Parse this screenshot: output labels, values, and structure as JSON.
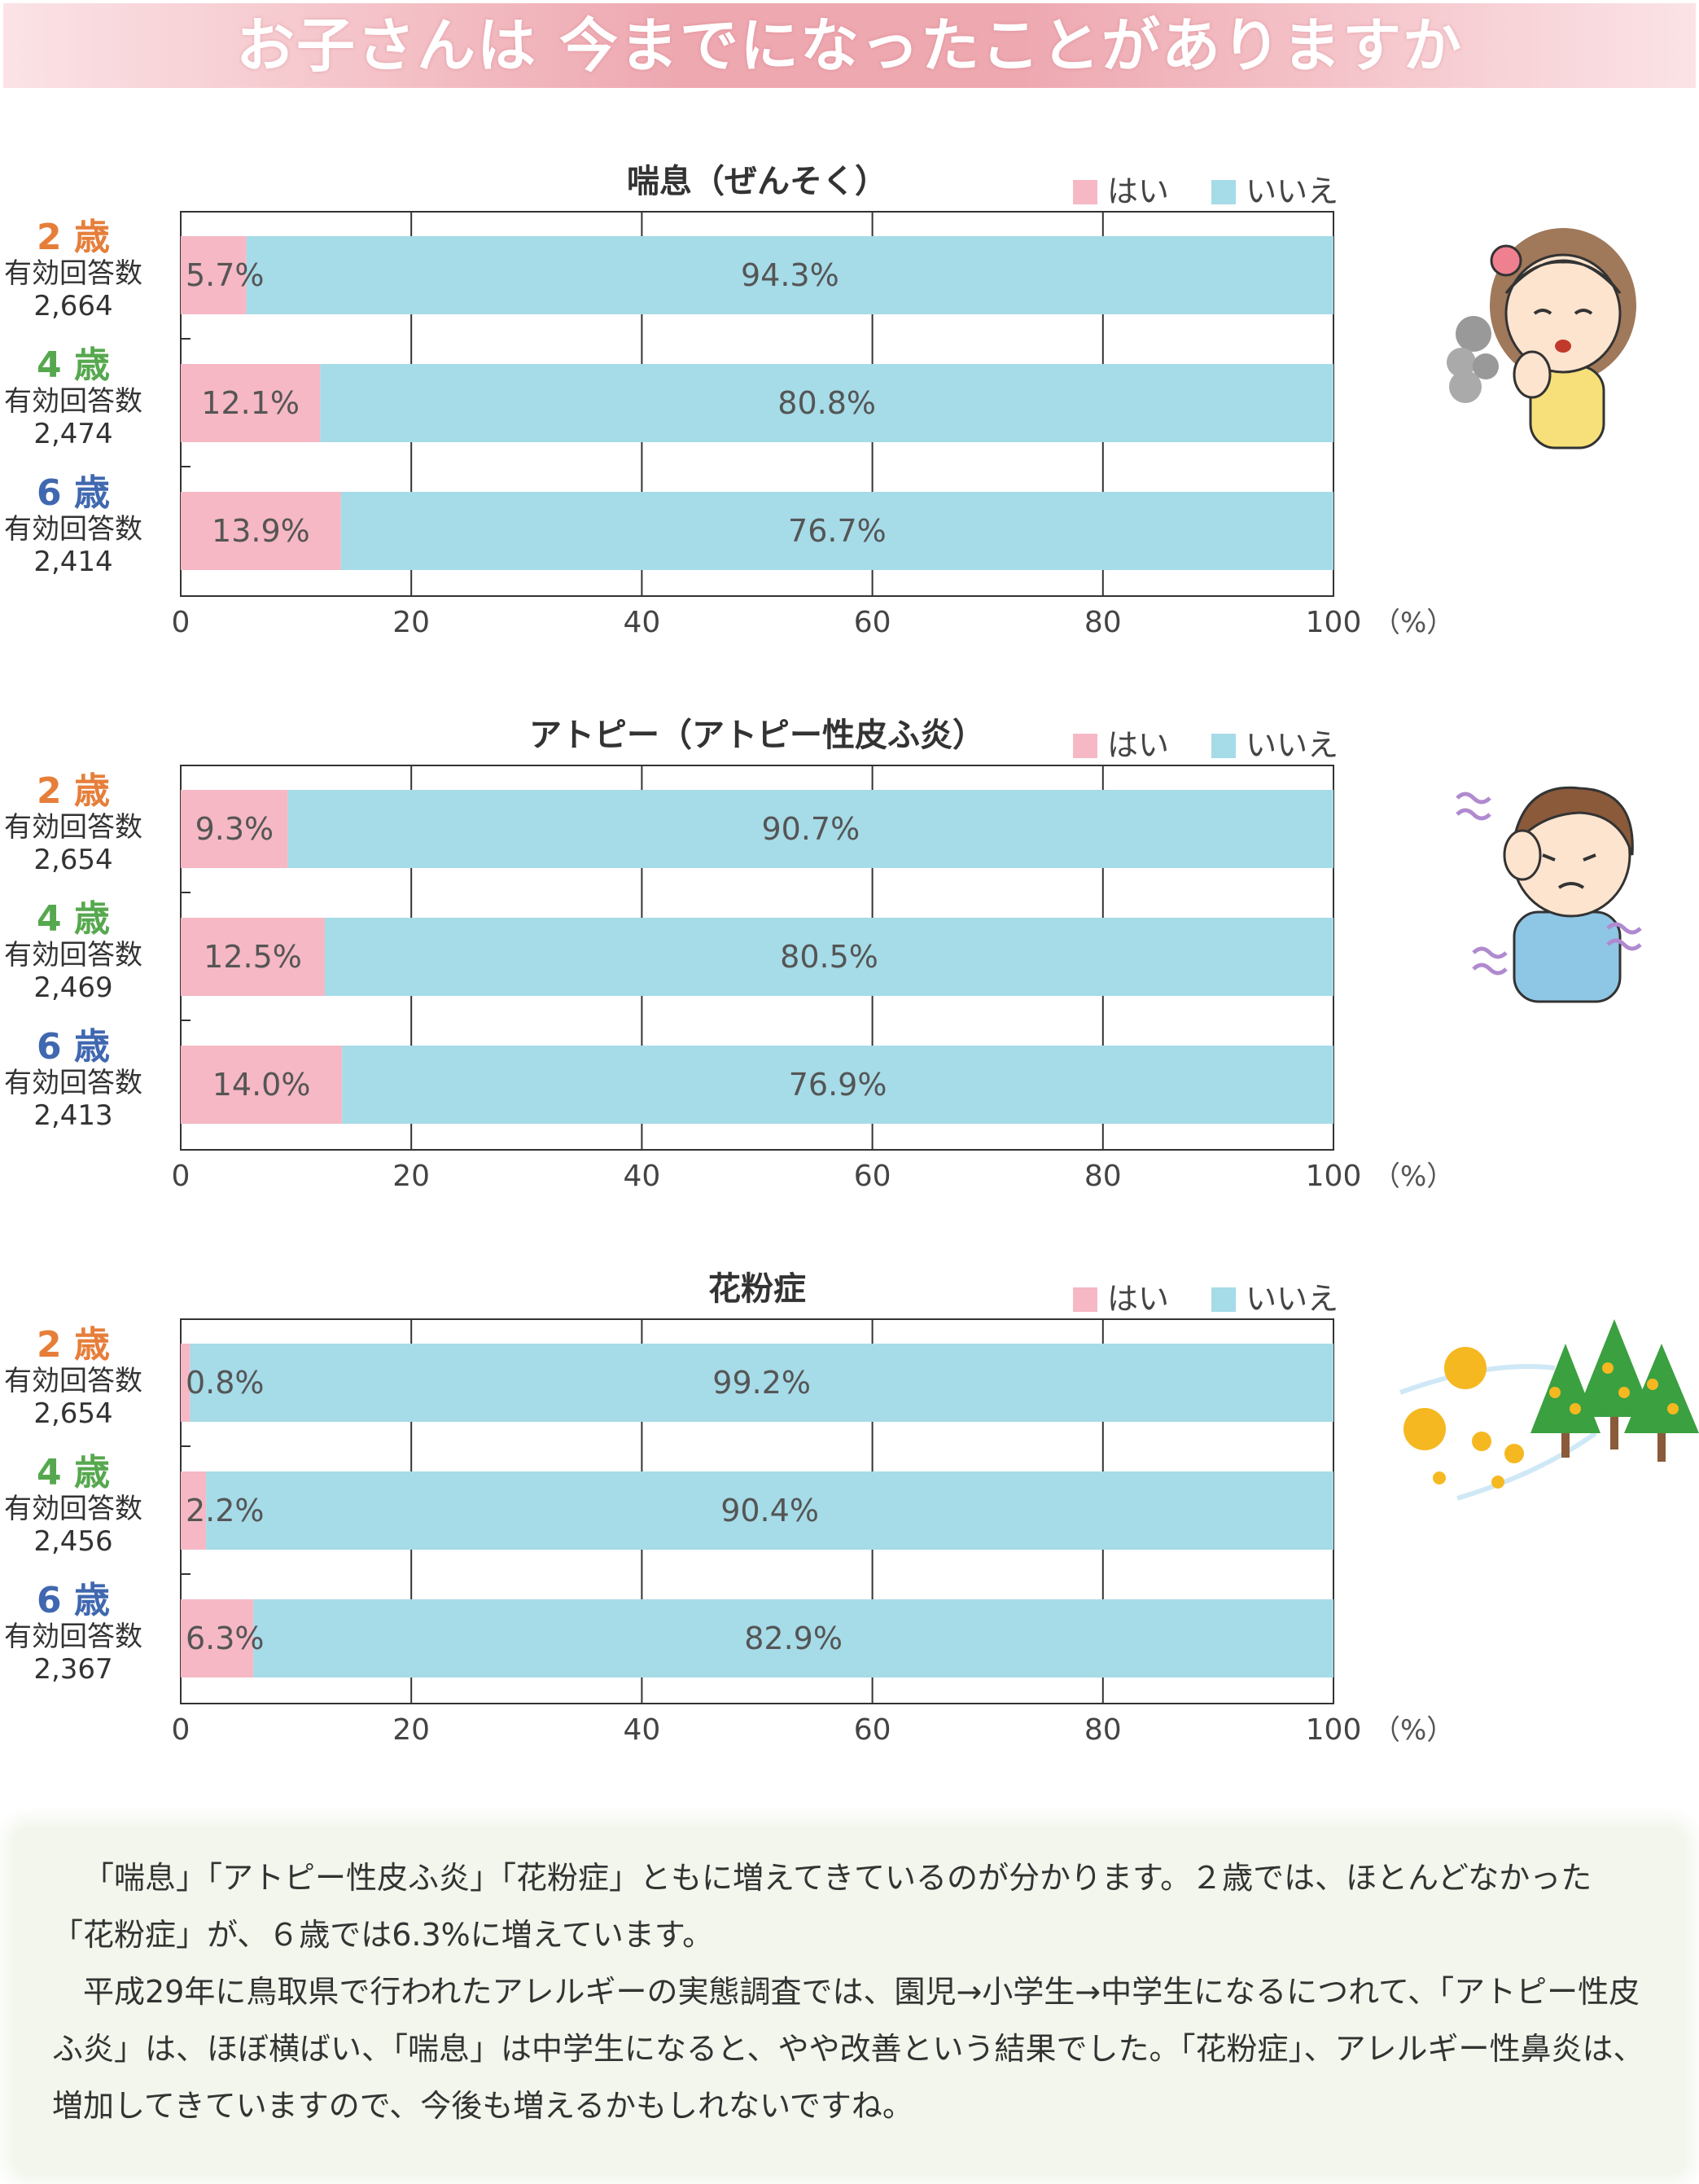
{
  "banner": {
    "title": "お子さんは 今までになったことがありますか"
  },
  "legend": {
    "yes": "はい",
    "no": "いいえ"
  },
  "colors": {
    "yes": "#f5b8c4",
    "no": "#a6dbe8",
    "age2": "#e67e3a",
    "age4": "#56a84e",
    "age6": "#4068b0"
  },
  "respondents_label": "有効回答数",
  "chart_data": [
    {
      "type": "bar",
      "stacked": true,
      "orientation": "horizontal",
      "title": "喘息（ぜんそく）",
      "categories": [
        "2 歳",
        "4 歳",
        "6 歳"
      ],
      "respondents": [
        "2,664",
        "2,474",
        "2,414"
      ],
      "series": [
        {
          "name": "はい",
          "values": [
            5.7,
            12.1,
            13.9
          ]
        },
        {
          "name": "いいえ",
          "values": [
            94.3,
            80.8,
            76.7
          ]
        }
      ],
      "xticks": [
        "0",
        "20",
        "40",
        "60",
        "80",
        "100"
      ],
      "xunit": "（%）",
      "xlim": [
        0,
        100
      ],
      "grid": true
    },
    {
      "type": "bar",
      "stacked": true,
      "orientation": "horizontal",
      "title": "アトピー（アトピー性皮ふ炎）",
      "categories": [
        "2 歳",
        "4 歳",
        "6 歳"
      ],
      "respondents": [
        "2,654",
        "2,469",
        "2,413"
      ],
      "series": [
        {
          "name": "はい",
          "values": [
            9.3,
            12.5,
            14.0
          ]
        },
        {
          "name": "いいえ",
          "values": [
            90.7,
            80.5,
            76.9
          ]
        }
      ],
      "xticks": [
        "0",
        "20",
        "40",
        "60",
        "80",
        "100"
      ],
      "xunit": "（%）",
      "xlim": [
        0,
        100
      ],
      "grid": true
    },
    {
      "type": "bar",
      "stacked": true,
      "orientation": "horizontal",
      "title": "花粉症",
      "categories": [
        "2 歳",
        "4 歳",
        "6 歳"
      ],
      "respondents": [
        "2,654",
        "2,456",
        "2,367"
      ],
      "series": [
        {
          "name": "はい",
          "values": [
            0.8,
            2.2,
            6.3
          ]
        },
        {
          "name": "いいえ",
          "values": [
            99.2,
            90.4,
            82.9
          ]
        }
      ],
      "xticks": [
        "0",
        "20",
        "40",
        "60",
        "80",
        "100"
      ],
      "xunit": "（%）",
      "xlim": [
        0,
        100
      ],
      "grid": true
    }
  ],
  "summary": {
    "p1": "「喘息」「アトピー性皮ふ炎」「花粉症」ともに増えてきているのが分かります。２歳では、ほとんどなかった「花粉症」が、６歳では6.3%に増えています。",
    "p2": "平成29年に鳥取県で行われたアレルギーの実態調査では、園児→小学生→中学生になるにつれて、「アトピー性皮ふ炎」は、ほぼ横ばい、「喘息」は中学生になると、やや改善という結果でした。「花粉症」、アレルギー性鼻炎は、増加してきていますので、今後も増えるかもしれないですね。"
  }
}
